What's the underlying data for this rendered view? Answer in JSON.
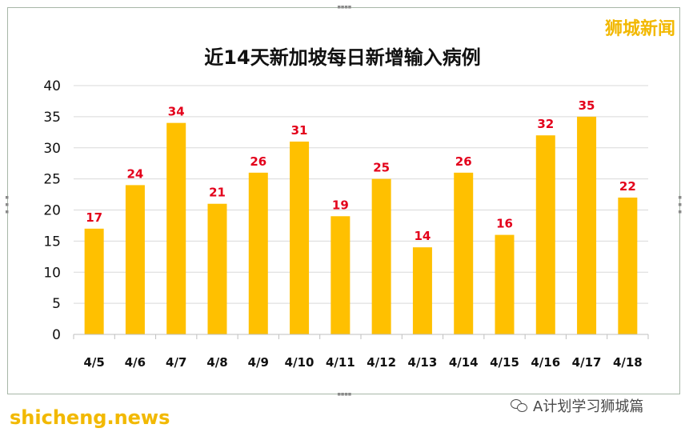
{
  "brand": {
    "name": "狮城新闻"
  },
  "footer": {
    "site_watermark": "shicheng.news",
    "account_label": "A计划学习狮城篇"
  },
  "colors": {
    "bar": "#ffc000",
    "data_label": "#e3001b",
    "grid": "#d9d9d9",
    "axis": "#bfbfbf"
  },
  "chart_data": {
    "type": "bar",
    "title": "近14天新加坡每日新增输入病例",
    "categories": [
      "4/5",
      "4/6",
      "4/7",
      "4/8",
      "4/9",
      "4/10",
      "4/11",
      "4/12",
      "4/13",
      "4/14",
      "4/15",
      "4/16",
      "4/17",
      "4/18"
    ],
    "values": [
      17,
      24,
      34,
      21,
      26,
      31,
      19,
      25,
      14,
      26,
      16,
      32,
      35,
      22
    ],
    "ylim": [
      0,
      40
    ],
    "yticks": [
      0,
      5,
      10,
      15,
      20,
      25,
      30,
      35,
      40
    ],
    "grid": true,
    "xlabel": "",
    "ylabel": ""
  }
}
